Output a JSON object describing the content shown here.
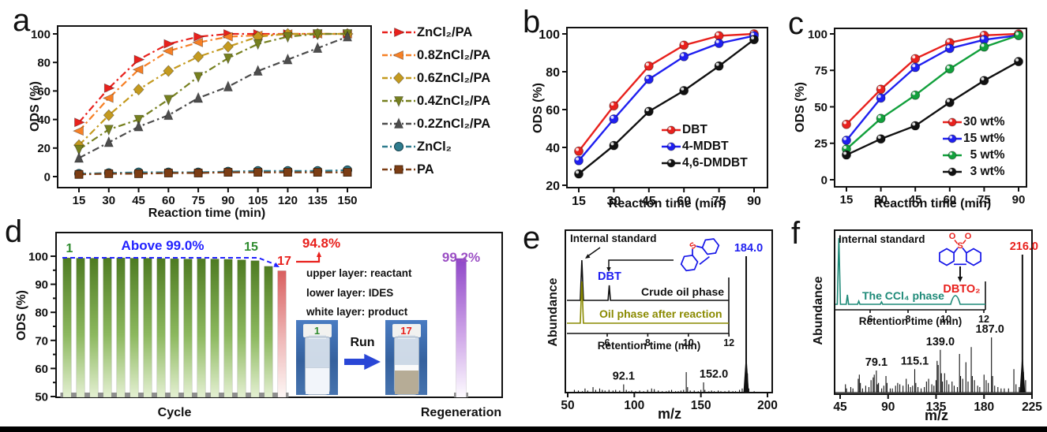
{
  "figure": {
    "background": "#ffffff"
  },
  "colors": {
    "red": "#e8211d",
    "orange": "#f68026",
    "goldenrod": "#c49a1f",
    "olive": "#76801f",
    "gray": "#4d4d4d",
    "teal": "#2f7c8e",
    "brown": "#7c3d14",
    "blue": "#1f1ff0",
    "green": "#12a03c",
    "black": "#111111",
    "annotation_blue": "#2222ff",
    "annotation_green": "#2e8b2e",
    "annotation_red": "#e8211d",
    "purple": "#9b4fc4",
    "inset_olive": "#8a8a00",
    "inset_teal": "#1e8a78"
  },
  "chart_data": [
    {
      "letter": "a",
      "type": "line",
      "xlabel": "Reaction time (min)",
      "ylabel": "ODS (%)",
      "x": [
        15,
        30,
        45,
        60,
        75,
        90,
        105,
        120,
        135,
        150
      ],
      "xticks": [
        15,
        30,
        45,
        60,
        75,
        90,
        105,
        120,
        135,
        150
      ],
      "yticks": [
        0,
        20,
        40,
        60,
        80,
        100
      ],
      "ylim": [
        0,
        100
      ],
      "legend_position": "right-outside",
      "series": [
        {
          "name": "ZnCl₂/PA",
          "color": "#e8211d",
          "marker": "tri-right",
          "dash": "dashdot",
          "values": [
            38,
            62,
            82,
            93,
            98,
            100,
            100,
            100,
            100,
            100
          ]
        },
        {
          "name": "0.8ZnCl₂/PA",
          "color": "#f68026",
          "marker": "tri-left",
          "dash": "dashdot",
          "values": [
            32,
            55,
            75,
            88,
            94,
            98,
            99,
            100,
            100,
            100
          ]
        },
        {
          "name": "0.6ZnCl₂/PA",
          "color": "#c49a1f",
          "marker": "diamond",
          "dash": "dashdot",
          "values": [
            22,
            43,
            61,
            74,
            84,
            91,
            98,
            100,
            100,
            100
          ]
        },
        {
          "name": "0.4ZnCl₂/PA",
          "color": "#76801f",
          "marker": "tri-down",
          "dash": "dashdot",
          "values": [
            19,
            33,
            40,
            54,
            70,
            83,
            93,
            98,
            100,
            100
          ]
        },
        {
          "name": "0.2ZnCl₂/PA",
          "color": "#4d4d4d",
          "marker": "tri-up",
          "dash": "dashdot",
          "values": [
            13,
            24,
            35,
            43,
            55,
            63,
            74,
            82,
            90,
            98
          ]
        },
        {
          "name": "ZnCl₂",
          "color": "#2f7c8e",
          "marker": "circle",
          "dash": "dashdot",
          "values": [
            2,
            2.5,
            3,
            3,
            3,
            3.5,
            4,
            4,
            4,
            4.5
          ]
        },
        {
          "name": "PA",
          "color": "#7c3d14",
          "marker": "square",
          "dash": "dashdot",
          "values": [
            1.5,
            2,
            2,
            2.5,
            2.5,
            3,
            3,
            3,
            3,
            3
          ]
        }
      ]
    },
    {
      "letter": "b",
      "type": "line",
      "xlabel": "Reaction time (min)",
      "ylabel": "ODS  (%)",
      "x": [
        15,
        30,
        45,
        60,
        75,
        90
      ],
      "xticks": [
        15,
        30,
        45,
        60,
        75,
        90
      ],
      "yticks": [
        20,
        40,
        60,
        80,
        100
      ],
      "ylim": [
        20,
        100
      ],
      "legend_position": "inside-lower-right",
      "series": [
        {
          "name": "DBT",
          "color": "#e8211d",
          "marker": "ball",
          "dash": "solid",
          "values": [
            38,
            62,
            83,
            94,
            99,
            100
          ]
        },
        {
          "name": "4-MDBT",
          "color": "#1f1ff0",
          "marker": "ball",
          "dash": "solid",
          "values": [
            33,
            55,
            76,
            88,
            95,
            99
          ]
        },
        {
          "name": "4,6-DMDBT",
          "color": "#111111",
          "marker": "ball",
          "dash": "solid",
          "values": [
            26,
            41,
            59,
            70,
            83,
            97
          ]
        }
      ]
    },
    {
      "letter": "c",
      "type": "line",
      "xlabel": "Reaction time (min)",
      "ylabel": "ODS (%)",
      "x": [
        15,
        30,
        45,
        60,
        75,
        90
      ],
      "xticks": [
        15,
        30,
        45,
        60,
        75,
        90
      ],
      "yticks": [
        0,
        25,
        50,
        75,
        100
      ],
      "ylim": [
        0,
        100
      ],
      "legend_position": "inside-right",
      "series": [
        {
          "name": "30 wt%",
          "color": "#e8211d",
          "marker": "ball",
          "dash": "solid",
          "values": [
            38,
            62,
            83,
            94,
            99,
            100
          ]
        },
        {
          "name": "15 wt%",
          "color": "#1f1ff0",
          "marker": "ball",
          "dash": "solid",
          "values": [
            27,
            56,
            77,
            90,
            96,
            99
          ]
        },
        {
          "name": "  5 wt%",
          "color": "#12a03c",
          "marker": "ball",
          "dash": "solid",
          "values": [
            21,
            42,
            58,
            76,
            91,
            99
          ]
        },
        {
          "name": "  3 wt%",
          "color": "#111111",
          "marker": "ball",
          "dash": "solid",
          "values": [
            17,
            28,
            37,
            53,
            68,
            81
          ]
        }
      ]
    },
    {
      "letter": "d",
      "type": "bar",
      "ylabel": "ODS (%)",
      "yticks": [
        50,
        60,
        70,
        80,
        90,
        100
      ],
      "ylim": [
        50,
        100
      ],
      "xlabel_cycle": "Cycle",
      "xlabel_regen": "Regeneration",
      "cycle_values": [
        99.4,
        99.3,
        99.3,
        99.4,
        99.4,
        99.3,
        99.3,
        99.2,
        99.1,
        99.0,
        99.1,
        99.0,
        98.9,
        98.7,
        98.4,
        96.4,
        94.8
      ],
      "regen_value": 99.2,
      "annotations": {
        "first_cycle": "1",
        "above_line": "Above 99.0%",
        "cycle15": "15",
        "cycle17": "17",
        "pct17": "94.8%",
        "regen_pct": "99.2%",
        "upper_layer": "upper layer: reactant",
        "lower_layer": "lower layer: IDES",
        "white_layer": "white layer: product",
        "run": "Run",
        "vial_start": "1",
        "vial_end": "17"
      }
    },
    {
      "letter": "e",
      "type": "spectrum",
      "xlabel": "m/z",
      "ylabel": "Abundance",
      "xticks": [
        50,
        100,
        150,
        200
      ],
      "peaks": [
        [
          55,
          2
        ],
        [
          58,
          1.5
        ],
        [
          61,
          1
        ],
        [
          63,
          3
        ],
        [
          65,
          1.5
        ],
        [
          69,
          4
        ],
        [
          71,
          2
        ],
        [
          74,
          3
        ],
        [
          76,
          2
        ],
        [
          78,
          1.5
        ],
        [
          81,
          2
        ],
        [
          84,
          1.5
        ],
        [
          86,
          2
        ],
        [
          89,
          1.5
        ],
        [
          92,
          6
        ],
        [
          94,
          2
        ],
        [
          96,
          1
        ],
        [
          98,
          1.5
        ],
        [
          101,
          1
        ],
        [
          104,
          1.5
        ],
        [
          107,
          1
        ],
        [
          110,
          2
        ],
        [
          113,
          3
        ],
        [
          115,
          2.5
        ],
        [
          118,
          1.5
        ],
        [
          121,
          1
        ],
        [
          124,
          1
        ],
        [
          126,
          1.5
        ],
        [
          128,
          2
        ],
        [
          131,
          1
        ],
        [
          133,
          1
        ],
        [
          135,
          1.5
        ],
        [
          137,
          2
        ],
        [
          139,
          15
        ],
        [
          140,
          4
        ],
        [
          142,
          1.5
        ],
        [
          145,
          1.5
        ],
        [
          148,
          1
        ],
        [
          150,
          2
        ],
        [
          152,
          7.5
        ],
        [
          153,
          2
        ],
        [
          156,
          1
        ],
        [
          158,
          1.5
        ],
        [
          160,
          1
        ],
        [
          163,
          1.5
        ],
        [
          165,
          1
        ],
        [
          168,
          1
        ],
        [
          171,
          1.5
        ],
        [
          174,
          1
        ],
        [
          176,
          1
        ],
        [
          179,
          2
        ],
        [
          181,
          3
        ],
        [
          183,
          8
        ],
        [
          184,
          100
        ],
        [
          185,
          14
        ],
        [
          186,
          3
        ],
        [
          190,
          1
        ]
      ],
      "peak_labels": [
        {
          "text": "92.1",
          "mz": 92,
          "color": "#111111",
          "dx": 0
        },
        {
          "text": "152.0",
          "mz": 152,
          "color": "#111111",
          "dx": 13
        },
        {
          "text": "184.0",
          "mz": 184,
          "color": "#1f1ff0",
          "dx": 3
        }
      ],
      "inset": {
        "xlabel": "Retention time (min)",
        "xticks": [
          6,
          8,
          10,
          12
        ],
        "traces": [
          {
            "name": "Crude oil phase",
            "color": "#111111",
            "peaks": [
              {
                "t": 4.75,
                "h": 51,
                "w": 4
              },
              {
                "t": 6.1,
                "h": 19,
                "w": 3
              }
            ]
          },
          {
            "name": "Oil phase after reaction",
            "color": "#8a8a00",
            "peaks": [
              {
                "t": 4.75,
                "h": 53,
                "w": 4
              }
            ]
          }
        ],
        "labels": {
          "internal_standard": "Internal standard",
          "species": "DBT",
          "trace1": "Crude oil phase",
          "trace2": "Oil phase after reaction"
        },
        "molecule": {
          "s_atom": "S"
        }
      }
    },
    {
      "letter": "f",
      "type": "spectrum",
      "xlabel": "m/z",
      "ylabel": "Abundance",
      "xticks": [
        45,
        90,
        135,
        180,
        225
      ],
      "peaks": [
        [
          50,
          6
        ],
        [
          51,
          3
        ],
        [
          55,
          4
        ],
        [
          57,
          3
        ],
        [
          62,
          10
        ],
        [
          63,
          13
        ],
        [
          64,
          7
        ],
        [
          66,
          3
        ],
        [
          69,
          5
        ],
        [
          72,
          4
        ],
        [
          74,
          9
        ],
        [
          76,
          11
        ],
        [
          77,
          13
        ],
        [
          79,
          16
        ],
        [
          80,
          6
        ],
        [
          81,
          7
        ],
        [
          84,
          3
        ],
        [
          86,
          5
        ],
        [
          88,
          12
        ],
        [
          89,
          7
        ],
        [
          92,
          3
        ],
        [
          94,
          3
        ],
        [
          97,
          5
        ],
        [
          99,
          7
        ],
        [
          101,
          6
        ],
        [
          104,
          5
        ],
        [
          107,
          10
        ],
        [
          109,
          6
        ],
        [
          111,
          4
        ],
        [
          113,
          5
        ],
        [
          115,
          17
        ],
        [
          116,
          7
        ],
        [
          118,
          4
        ],
        [
          121,
          3
        ],
        [
          124,
          4
        ],
        [
          126,
          8
        ],
        [
          128,
          10
        ],
        [
          131,
          6
        ],
        [
          133,
          5
        ],
        [
          135,
          9
        ],
        [
          136,
          23
        ],
        [
          137,
          20
        ],
        [
          139,
          31
        ],
        [
          140,
          14
        ],
        [
          141,
          8
        ],
        [
          143,
          14
        ],
        [
          145,
          9
        ],
        [
          147,
          6
        ],
        [
          150,
          8
        ],
        [
          152,
          5
        ],
        [
          155,
          4
        ],
        [
          157,
          28
        ],
        [
          158,
          12
        ],
        [
          160,
          10
        ],
        [
          163,
          22
        ],
        [
          165,
          8
        ],
        [
          168,
          33
        ],
        [
          169,
          12
        ],
        [
          171,
          9
        ],
        [
          174,
          5
        ],
        [
          176,
          4
        ],
        [
          180,
          13
        ],
        [
          182,
          9
        ],
        [
          184,
          7
        ],
        [
          187,
          40
        ],
        [
          188,
          12
        ],
        [
          190,
          5
        ],
        [
          193,
          4
        ],
        [
          196,
          3
        ],
        [
          199,
          3
        ],
        [
          203,
          3
        ],
        [
          208,
          17
        ],
        [
          210,
          6
        ],
        [
          213,
          4
        ],
        [
          216,
          100
        ],
        [
          217,
          15
        ],
        [
          219,
          9
        ]
      ],
      "peak_labels": [
        {
          "text": "79.1",
          "mz": 79,
          "color": "#111111",
          "dx": 0
        },
        {
          "text": "115.1",
          "mz": 115,
          "color": "#111111",
          "dx": 0
        },
        {
          "text": "139.0",
          "mz": 139,
          "color": "#111111",
          "dx": 0
        },
        {
          "text": "187.0",
          "mz": 187,
          "color": "#111111",
          "dx": -2
        },
        {
          "text": "216.0",
          "mz": 216,
          "color": "#e8211d",
          "dx": 2
        }
      ],
      "inset": {
        "xlabel": "Retention time (min)",
        "xticks": [
          6,
          8,
          10,
          12
        ],
        "traces": [
          {
            "name": "The CCl₄ phase",
            "color": "#1e8a78",
            "peaks": [
              {
                "t": 4.35,
                "h": 84,
                "w": 4
              },
              {
                "t": 4.8,
                "h": 12,
                "w": 3
              },
              {
                "t": 5.4,
                "h": 4,
                "w": 3
              },
              {
                "t": 6.6,
                "h": 3,
                "w": 3
              },
              {
                "t": 10.5,
                "h": 11,
                "w": 12
              }
            ]
          }
        ],
        "labels": {
          "internal_standard": "Internal standard",
          "phase": "The CCl₄ phase",
          "species": "DBTO₂"
        },
        "molecule": {
          "s_atom": "S",
          "o_atom": "O"
        }
      }
    }
  ]
}
